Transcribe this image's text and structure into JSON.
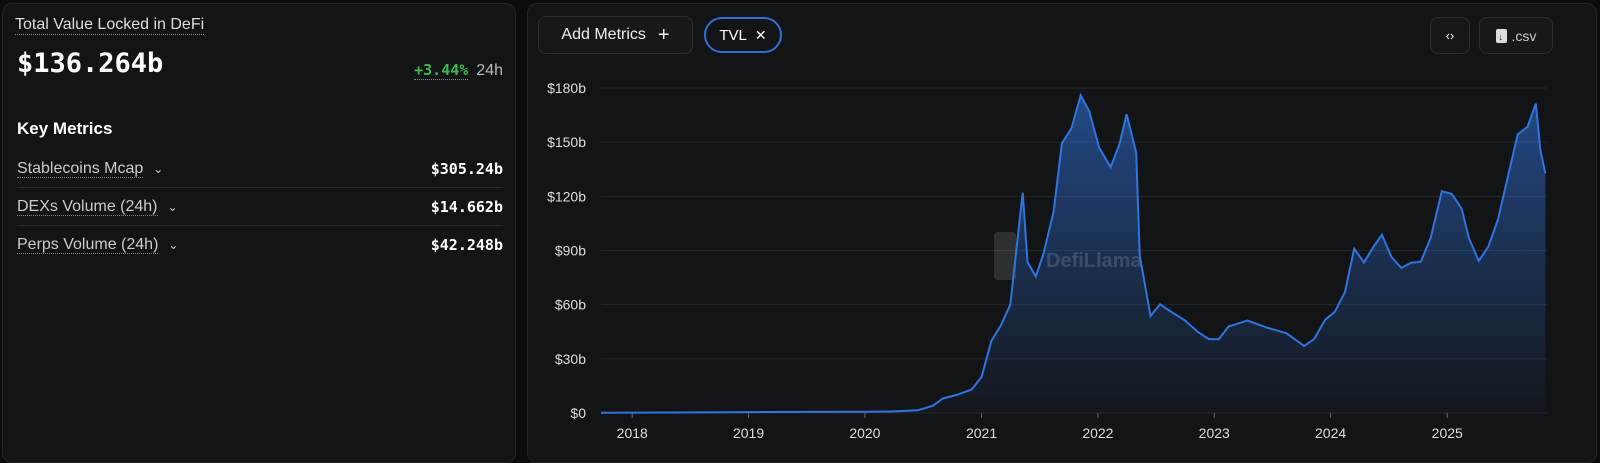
{
  "summary": {
    "title": "Total Value Locked in DeFi",
    "value": "$136.264b",
    "change": "+3.44%",
    "period": "24h"
  },
  "key_metrics": {
    "heading": "Key Metrics",
    "items": [
      {
        "label": "Stablecoins Mcap",
        "value": "$305.24b"
      },
      {
        "label": "DEXs Volume (24h)",
        "value": "$14.662b"
      },
      {
        "label": "Perps Volume (24h)",
        "value": "$42.248b"
      }
    ]
  },
  "toolbar": {
    "add_metrics": "Add Metrics",
    "add_icon": "+",
    "tvl_pill": "TVL",
    "remove_icon": "✕",
    "embed_icon": "‹›",
    "csv": ".csv"
  },
  "colors": {
    "line": "#2f74e0",
    "positive": "#3fb950"
  },
  "watermark": "DefiLlama",
  "chart_data": {
    "type": "area",
    "title": "",
    "xlabel": "",
    "ylabel": "",
    "ylim": [
      0,
      180
    ],
    "yticks": [
      "$0",
      "$30b",
      "$60b",
      "$90b",
      "$120b",
      "$150b",
      "$180b"
    ],
    "yticks_values": [
      0,
      30,
      60,
      90,
      120,
      150,
      180
    ],
    "xticks": [
      "2018",
      "2019",
      "2020",
      "2021",
      "2022",
      "2023",
      "2024",
      "2025"
    ],
    "xlim": [
      "2017-09-25",
      "2025-11-10"
    ],
    "grid": true,
    "series": [
      {
        "points": [
          [
            "2017-09-25",
            0.1
          ],
          [
            "2018-06-01",
            0.3
          ],
          [
            "2019-01-01",
            0.5
          ],
          [
            "2019-07-01",
            0.6
          ],
          [
            "2020-01-01",
            0.7
          ],
          [
            "2020-04-01",
            0.9
          ],
          [
            "2020-06-15",
            1.5
          ],
          [
            "2020-08-01",
            4
          ],
          [
            "2020-09-01",
            8
          ],
          [
            "2020-10-15",
            10
          ],
          [
            "2020-12-01",
            13
          ],
          [
            "2021-01-01",
            20
          ],
          [
            "2021-02-01",
            40
          ],
          [
            "2021-03-01",
            48
          ],
          [
            "2021-04-01",
            60
          ],
          [
            "2021-05-10",
            122
          ],
          [
            "2021-05-25",
            85
          ],
          [
            "2021-06-20",
            78
          ],
          [
            "2021-07-15",
            90
          ],
          [
            "2021-08-15",
            110
          ],
          [
            "2021-09-10",
            145
          ],
          [
            "2021-10-10",
            155
          ],
          [
            "2021-11-08",
            178
          ],
          [
            "2021-12-05",
            172
          ],
          [
            "2022-01-05",
            150
          ],
          [
            "2022-02-10",
            135
          ],
          [
            "2022-03-10",
            145
          ],
          [
            "2022-04-01",
            162
          ],
          [
            "2022-05-01",
            145
          ],
          [
            "2022-05-12",
            90
          ],
          [
            "2022-06-15",
            55
          ],
          [
            "2022-07-15",
            60
          ],
          [
            "2022-08-15",
            55
          ],
          [
            "2022-10-01",
            50
          ],
          [
            "2022-11-10",
            45
          ],
          [
            "2022-12-15",
            42
          ],
          [
            "2023-01-15",
            42
          ],
          [
            "2023-02-15",
            48
          ],
          [
            "2023-04-15",
            50
          ],
          [
            "2023-06-15",
            46
          ],
          [
            "2023-08-15",
            44
          ],
          [
            "2023-10-10",
            38
          ],
          [
            "2023-11-10",
            42
          ],
          [
            "2023-12-15",
            52
          ],
          [
            "2024-01-15",
            55
          ],
          [
            "2024-02-15",
            65
          ],
          [
            "2024-03-15",
            90
          ],
          [
            "2024-04-15",
            85
          ],
          [
            "2024-05-15",
            95
          ],
          [
            "2024-06-10",
            100
          ],
          [
            "2024-07-10",
            85
          ],
          [
            "2024-08-10",
            78
          ],
          [
            "2024-09-10",
            82
          ],
          [
            "2024-10-10",
            85
          ],
          [
            "2024-11-10",
            100
          ],
          [
            "2024-12-15",
            125
          ],
          [
            "2025-01-15",
            120
          ],
          [
            "2025-02-15",
            110
          ],
          [
            "2025-03-10",
            95
          ],
          [
            "2025-04-10",
            85
          ],
          [
            "2025-05-10",
            95
          ],
          [
            "2025-06-10",
            110
          ],
          [
            "2025-07-10",
            130
          ],
          [
            "2025-08-10",
            150
          ],
          [
            "2025-09-10",
            155
          ],
          [
            "2025-10-06",
            172
          ],
          [
            "2025-10-20",
            150
          ],
          [
            "2025-11-05",
            136
          ]
        ]
      }
    ]
  }
}
